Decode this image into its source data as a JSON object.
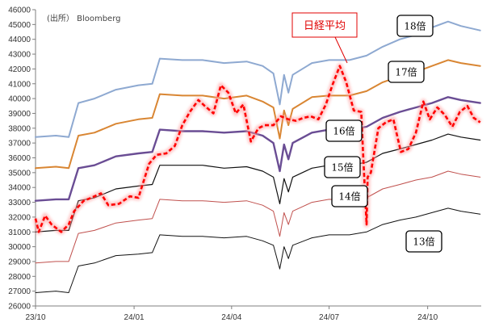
{
  "chart_data": {
    "type": "line",
    "source_label": "(出所） Bloomberg",
    "ylim": [
      26000,
      46000
    ],
    "yticks": [
      26000,
      27000,
      28000,
      29000,
      30000,
      31000,
      32000,
      33000,
      34000,
      35000,
      36000,
      37000,
      38000,
      39000,
      40000,
      41000,
      42000,
      43000,
      44000,
      45000,
      46000
    ],
    "xlim": [
      "2023-10-01",
      "2024-11-20"
    ],
    "xticks": [
      {
        "date": "2023-10-01",
        "label": "23/10"
      },
      {
        "date": "2024-01-01",
        "label": "24/01"
      },
      {
        "date": "2024-04-01",
        "label": "24/04"
      },
      {
        "date": "2024-07-01",
        "label": "24/07"
      },
      {
        "date": "2024-10-01",
        "label": "24/10"
      }
    ],
    "annotation": {
      "text": "日経平均",
      "color": "#e00000"
    },
    "series": [
      {
        "name": "18倍",
        "color": "#8ea9d1",
        "style": "solid",
        "width": 2,
        "points": [
          [
            "2023-10-01",
            37400
          ],
          [
            "2023-10-20",
            37500
          ],
          [
            "2023-11-01",
            37400
          ],
          [
            "2023-11-10",
            39700
          ],
          [
            "2023-11-25",
            40000
          ],
          [
            "2023-12-15",
            40600
          ],
          [
            "2024-01-05",
            40900
          ],
          [
            "2024-01-18",
            41000
          ],
          [
            "2024-01-25",
            42700
          ],
          [
            "2024-02-15",
            42600
          ],
          [
            "2024-03-05",
            42600
          ],
          [
            "2024-03-25",
            42400
          ],
          [
            "2024-04-15",
            42500
          ],
          [
            "2024-04-30",
            42200
          ],
          [
            "2024-05-10",
            41700
          ],
          [
            "2024-05-16",
            39600
          ],
          [
            "2024-05-20",
            41600
          ],
          [
            "2024-05-24",
            40400
          ],
          [
            "2024-05-28",
            41600
          ],
          [
            "2024-06-15",
            42400
          ],
          [
            "2024-07-01",
            42600
          ],
          [
            "2024-07-20",
            42600
          ],
          [
            "2024-08-05",
            42900
          ],
          [
            "2024-08-20",
            43500
          ],
          [
            "2024-09-05",
            44000
          ],
          [
            "2024-09-20",
            44300
          ],
          [
            "2024-10-05",
            44800
          ],
          [
            "2024-10-20",
            45200
          ],
          [
            "2024-11-01",
            44900
          ],
          [
            "2024-11-19",
            44600
          ]
        ]
      },
      {
        "name": "17倍",
        "color": "#d98633",
        "style": "solid",
        "width": 2,
        "points": [
          [
            "2023-10-01",
            35300
          ],
          [
            "2023-10-20",
            35400
          ],
          [
            "2023-11-01",
            35300
          ],
          [
            "2023-11-10",
            37500
          ],
          [
            "2023-11-25",
            37700
          ],
          [
            "2023-12-15",
            38300
          ],
          [
            "2024-01-05",
            38600
          ],
          [
            "2024-01-18",
            38700
          ],
          [
            "2024-01-25",
            40300
          ],
          [
            "2024-02-15",
            40200
          ],
          [
            "2024-03-05",
            40200
          ],
          [
            "2024-03-25",
            40000
          ],
          [
            "2024-04-15",
            40200
          ],
          [
            "2024-04-30",
            39800
          ],
          [
            "2024-05-10",
            39400
          ],
          [
            "2024-05-16",
            37300
          ],
          [
            "2024-05-20",
            39200
          ],
          [
            "2024-05-24",
            38200
          ],
          [
            "2024-05-28",
            39300
          ],
          [
            "2024-06-15",
            40100
          ],
          [
            "2024-07-01",
            40200
          ],
          [
            "2024-07-20",
            40200
          ],
          [
            "2024-08-05",
            40500
          ],
          [
            "2024-08-20",
            41100
          ],
          [
            "2024-09-05",
            41500
          ],
          [
            "2024-09-20",
            41800
          ],
          [
            "2024-10-05",
            42200
          ],
          [
            "2024-10-20",
            42600
          ],
          [
            "2024-11-01",
            42400
          ],
          [
            "2024-11-19",
            42200
          ]
        ]
      },
      {
        "name": "16倍",
        "color": "#6a4d94",
        "style": "solid",
        "width": 2.4,
        "points": [
          [
            "2023-10-01",
            33100
          ],
          [
            "2023-10-20",
            33200
          ],
          [
            "2023-11-01",
            33200
          ],
          [
            "2023-11-10",
            35300
          ],
          [
            "2023-11-25",
            35500
          ],
          [
            "2023-12-15",
            36100
          ],
          [
            "2024-01-05",
            36300
          ],
          [
            "2024-01-18",
            36400
          ],
          [
            "2024-01-25",
            37900
          ],
          [
            "2024-02-15",
            37800
          ],
          [
            "2024-03-05",
            37800
          ],
          [
            "2024-03-25",
            37700
          ],
          [
            "2024-04-15",
            37800
          ],
          [
            "2024-04-30",
            37500
          ],
          [
            "2024-05-10",
            37000
          ],
          [
            "2024-05-16",
            35100
          ],
          [
            "2024-05-20",
            36900
          ],
          [
            "2024-05-24",
            35900
          ],
          [
            "2024-05-28",
            37000
          ],
          [
            "2024-06-15",
            37700
          ],
          [
            "2024-07-01",
            37900
          ],
          [
            "2024-07-20",
            37900
          ],
          [
            "2024-08-05",
            38100
          ],
          [
            "2024-08-20",
            38700
          ],
          [
            "2024-09-05",
            39100
          ],
          [
            "2024-09-20",
            39400
          ],
          [
            "2024-10-05",
            39700
          ],
          [
            "2024-10-20",
            40100
          ],
          [
            "2024-11-01",
            39900
          ],
          [
            "2024-11-19",
            39700
          ]
        ]
      },
      {
        "name": "15倍",
        "color": "#111111",
        "style": "solid",
        "width": 1.2,
        "points": [
          [
            "2023-10-01",
            31000
          ],
          [
            "2023-10-20",
            31100
          ],
          [
            "2023-11-01",
            31100
          ],
          [
            "2023-11-10",
            33100
          ],
          [
            "2023-11-25",
            33300
          ],
          [
            "2023-12-15",
            33900
          ],
          [
            "2024-01-05",
            34100
          ],
          [
            "2024-01-18",
            34200
          ],
          [
            "2024-01-25",
            35500
          ],
          [
            "2024-02-15",
            35500
          ],
          [
            "2024-03-05",
            35500
          ],
          [
            "2024-03-25",
            35300
          ],
          [
            "2024-04-15",
            35400
          ],
          [
            "2024-04-30",
            35100
          ],
          [
            "2024-05-10",
            34700
          ],
          [
            "2024-05-16",
            32900
          ],
          [
            "2024-05-20",
            34600
          ],
          [
            "2024-05-24",
            33700
          ],
          [
            "2024-05-28",
            34700
          ],
          [
            "2024-06-15",
            35300
          ],
          [
            "2024-07-01",
            35500
          ],
          [
            "2024-07-20",
            35500
          ],
          [
            "2024-08-05",
            35700
          ],
          [
            "2024-08-20",
            36300
          ],
          [
            "2024-09-05",
            36600
          ],
          [
            "2024-09-20",
            36900
          ],
          [
            "2024-10-05",
            37200
          ],
          [
            "2024-10-20",
            37600
          ],
          [
            "2024-11-01",
            37400
          ],
          [
            "2024-11-19",
            37200
          ]
        ]
      },
      {
        "name": "14倍",
        "color": "#c0504d",
        "style": "solid",
        "width": 1,
        "points": [
          [
            "2023-10-01",
            28900
          ],
          [
            "2023-10-20",
            29000
          ],
          [
            "2023-11-01",
            29000
          ],
          [
            "2023-11-10",
            30900
          ],
          [
            "2023-11-25",
            31100
          ],
          [
            "2023-12-15",
            31600
          ],
          [
            "2024-01-05",
            31800
          ],
          [
            "2024-01-18",
            31900
          ],
          [
            "2024-01-25",
            33200
          ],
          [
            "2024-02-15",
            33100
          ],
          [
            "2024-03-05",
            33100
          ],
          [
            "2024-03-25",
            33000
          ],
          [
            "2024-04-15",
            33100
          ],
          [
            "2024-04-30",
            32800
          ],
          [
            "2024-05-10",
            32400
          ],
          [
            "2024-05-16",
            30700
          ],
          [
            "2024-05-20",
            32300
          ],
          [
            "2024-05-24",
            31500
          ],
          [
            "2024-05-28",
            32400
          ],
          [
            "2024-06-15",
            33000
          ],
          [
            "2024-07-01",
            33200
          ],
          [
            "2024-07-20",
            33100
          ],
          [
            "2024-08-05",
            33300
          ],
          [
            "2024-08-20",
            33900
          ],
          [
            "2024-09-05",
            34200
          ],
          [
            "2024-09-20",
            34500
          ],
          [
            "2024-10-05",
            34700
          ],
          [
            "2024-10-20",
            35100
          ],
          [
            "2024-11-01",
            34900
          ],
          [
            "2024-11-19",
            34700
          ]
        ]
      },
      {
        "name": "13倍",
        "color": "#111111",
        "style": "solid",
        "width": 1,
        "points": [
          [
            "2023-10-01",
            26900
          ],
          [
            "2023-10-20",
            27000
          ],
          [
            "2023-11-01",
            26900
          ],
          [
            "2023-11-10",
            28700
          ],
          [
            "2023-11-25",
            28900
          ],
          [
            "2023-12-15",
            29400
          ],
          [
            "2024-01-05",
            29500
          ],
          [
            "2024-01-18",
            29600
          ],
          [
            "2024-01-25",
            30800
          ],
          [
            "2024-02-15",
            30700
          ],
          [
            "2024-03-05",
            30700
          ],
          [
            "2024-03-25",
            30600
          ],
          [
            "2024-04-15",
            30700
          ],
          [
            "2024-04-30",
            30400
          ],
          [
            "2024-05-10",
            30100
          ],
          [
            "2024-05-16",
            28500
          ],
          [
            "2024-05-20",
            30000
          ],
          [
            "2024-05-24",
            29200
          ],
          [
            "2024-05-28",
            30100
          ],
          [
            "2024-06-15",
            30600
          ],
          [
            "2024-07-01",
            30800
          ],
          [
            "2024-07-20",
            30800
          ],
          [
            "2024-08-05",
            31000
          ],
          [
            "2024-08-20",
            31500
          ],
          [
            "2024-09-05",
            31800
          ],
          [
            "2024-09-20",
            32000
          ],
          [
            "2024-10-05",
            32300
          ],
          [
            "2024-10-20",
            32600
          ],
          [
            "2024-11-01",
            32400
          ],
          [
            "2024-11-19",
            32200
          ]
        ]
      },
      {
        "name": "日経平均",
        "color": "#ff0000",
        "style": "dashed",
        "width": 2.6,
        "glow": true,
        "points": [
          [
            "2023-10-01",
            31900
          ],
          [
            "2023-10-04",
            31000
          ],
          [
            "2023-10-10",
            32100
          ],
          [
            "2023-10-16",
            31500
          ],
          [
            "2023-10-25",
            31000
          ],
          [
            "2023-11-01",
            31500
          ],
          [
            "2023-11-06",
            32400
          ],
          [
            "2023-11-15",
            33100
          ],
          [
            "2023-11-22",
            33300
          ],
          [
            "2023-12-01",
            33600
          ],
          [
            "2023-12-08",
            32800
          ],
          [
            "2023-12-18",
            32900
          ],
          [
            "2023-12-28",
            33400
          ],
          [
            "2024-01-05",
            33300
          ],
          [
            "2024-01-15",
            35600
          ],
          [
            "2024-01-22",
            36200
          ],
          [
            "2024-01-31",
            36300
          ],
          [
            "2024-02-08",
            36800
          ],
          [
            "2024-02-15",
            38200
          ],
          [
            "2024-02-22",
            39100
          ],
          [
            "2024-03-01",
            39900
          ],
          [
            "2024-03-07",
            39500
          ],
          [
            "2024-03-15",
            39000
          ],
          [
            "2024-03-22",
            40900
          ],
          [
            "2024-03-29",
            40400
          ],
          [
            "2024-04-05",
            39000
          ],
          [
            "2024-04-12",
            39600
          ],
          [
            "2024-04-19",
            37100
          ],
          [
            "2024-04-26",
            38000
          ],
          [
            "2024-05-02",
            38200
          ],
          [
            "2024-05-10",
            38200
          ],
          [
            "2024-05-17",
            38800
          ],
          [
            "2024-05-24",
            38600
          ],
          [
            "2024-05-31",
            38500
          ],
          [
            "2024-06-07",
            38700
          ],
          [
            "2024-06-14",
            38800
          ],
          [
            "2024-06-21",
            38600
          ],
          [
            "2024-06-28",
            39600
          ],
          [
            "2024-07-04",
            40900
          ],
          [
            "2024-07-11",
            42200
          ],
          [
            "2024-07-17",
            41100
          ],
          [
            "2024-07-24",
            39200
          ],
          [
            "2024-07-31",
            39100
          ],
          [
            "2024-08-02",
            35900
          ],
          [
            "2024-08-05",
            31500
          ],
          [
            "2024-08-06",
            34700
          ],
          [
            "2024-08-09",
            35000
          ],
          [
            "2024-08-16",
            38000
          ],
          [
            "2024-08-23",
            38400
          ],
          [
            "2024-08-30",
            38600
          ],
          [
            "2024-09-06",
            36400
          ],
          [
            "2024-09-13",
            36600
          ],
          [
            "2024-09-20",
            37700
          ],
          [
            "2024-09-27",
            39800
          ],
          [
            "2024-10-03",
            38600
          ],
          [
            "2024-10-10",
            39400
          ],
          [
            "2024-10-17",
            38900
          ],
          [
            "2024-10-24",
            38100
          ],
          [
            "2024-10-31",
            39100
          ],
          [
            "2024-11-07",
            39500
          ],
          [
            "2024-11-13",
            38700
          ],
          [
            "2024-11-19",
            38400
          ]
        ]
      }
    ]
  }
}
